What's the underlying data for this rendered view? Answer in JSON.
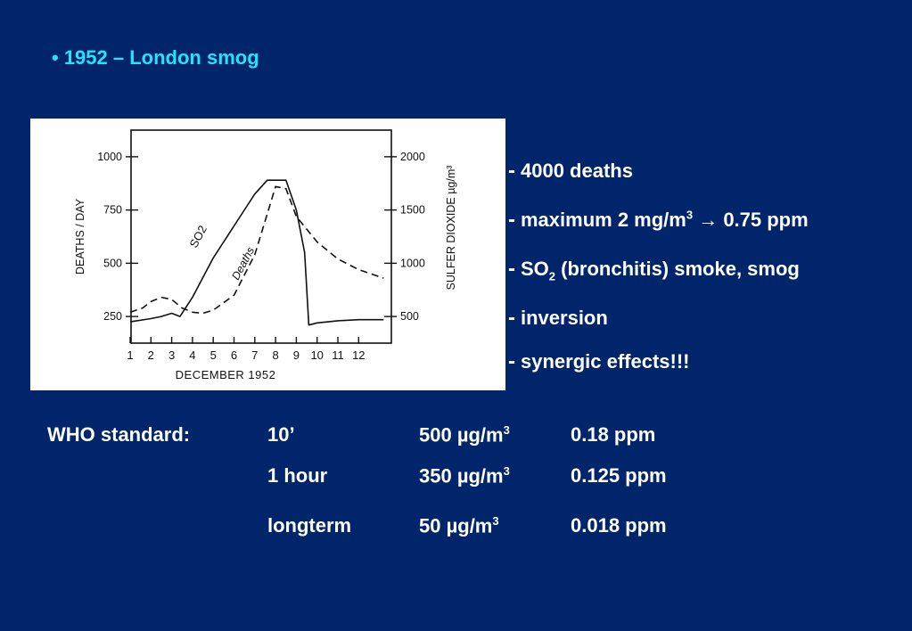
{
  "header": {
    "title": "• 1952 – London smog"
  },
  "chart_data": {
    "type": "line",
    "title": "",
    "xlabel": "DECEMBER 1952",
    "ylabel_left": "DEATHS / DAY",
    "ylabel_right": "SULFER DIOXIDE µg/m³",
    "x_ticks": [
      "1",
      "2",
      "3",
      "4",
      "5",
      "6",
      "7",
      "8",
      "9",
      "10",
      "11",
      "12"
    ],
    "y_left_ticks": [
      "250",
      "500",
      "750",
      "1000"
    ],
    "y_right_ticks": [
      "500",
      "1000",
      "1500",
      "2000"
    ],
    "ylim_left": [
      125,
      1125
    ],
    "ylim_right": [
      250,
      2250
    ],
    "series": [
      {
        "name": "SO2",
        "axis": "right",
        "style": "solid",
        "x": [
          1,
          2,
          2.5,
          3,
          3.4,
          4,
          5,
          6,
          7,
          7.6,
          8.5,
          9,
          9.4,
          9.6,
          10,
          11,
          12,
          13.2
        ],
        "y": [
          450,
          480,
          500,
          530,
          500,
          680,
          1050,
          1350,
          1650,
          1780,
          1780,
          1500,
          1100,
          420,
          440,
          460,
          470,
          470
        ]
      },
      {
        "name": "Deaths",
        "axis": "left",
        "style": "dashed",
        "x": [
          1,
          1.6,
          2,
          2.5,
          3,
          3.5,
          4,
          4.5,
          5,
          6,
          7,
          7.5,
          8,
          8.5,
          9,
          10,
          11,
          12,
          13.2
        ],
        "y": [
          270,
          290,
          320,
          340,
          330,
          290,
          270,
          265,
          280,
          350,
          540,
          700,
          860,
          850,
          720,
          600,
          520,
          470,
          430
        ]
      }
    ],
    "annotations": [
      "SO2",
      "Deaths"
    ]
  },
  "bullets": {
    "b1": "4000 deaths",
    "b2_pre": "maximum 2 mg/m",
    "b2_sup": "3",
    "b2_arrow": "→",
    "b2_post": " 0.75 ppm",
    "b3_pre": "SO",
    "b3_sub": "2",
    "b3_post": " (bronchitis) smoke, smog",
    "b4": "inversion",
    "b5": "synergic effects!!!",
    "dash": "-"
  },
  "who": {
    "label": "WHO standard:",
    "rows": [
      {
        "period": "10’",
        "conc": "500 µg/m",
        "sup": "3",
        "ppm": "0.18 ppm"
      },
      {
        "period": "1 hour",
        "conc": "350 µg/m",
        "sup": "3",
        "ppm": "0.125 ppm"
      },
      {
        "period": "longterm",
        "conc": "50 µg/m",
        "sup": "3",
        "ppm": "0.018 ppm"
      }
    ]
  },
  "colors": {
    "background": "#00256b",
    "title": "#22e4ff",
    "text": "#ffffff"
  }
}
